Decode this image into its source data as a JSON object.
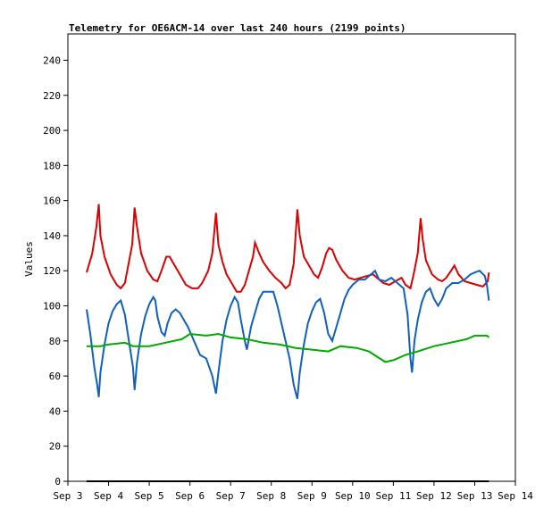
{
  "chart_data": {
    "type": "line",
    "title": "Telemetry for OE6ACM-14 over last 240 hours (2199 points)",
    "ylabel": "Values",
    "xlabel": "",
    "ylim": [
      0,
      255
    ],
    "xlim": [
      0,
      11
    ],
    "yticks": [
      0,
      20,
      40,
      60,
      80,
      100,
      120,
      140,
      160,
      180,
      200,
      220,
      240
    ],
    "xtick_labels": [
      "Sep 3",
      "Sep 4",
      "Sep 5",
      "Sep 6",
      "Sep 7",
      "Sep 8",
      "Sep 9",
      "Sep 10",
      "Sep 11",
      "Sep 12",
      "Sep 13",
      "Sep 14"
    ],
    "grid": false,
    "series": [
      {
        "color": "#dd0000",
        "points": [
          [
            0.46,
            119
          ],
          [
            0.6,
            130
          ],
          [
            0.7,
            145
          ],
          [
            0.76,
            158
          ],
          [
            0.8,
            140
          ],
          [
            0.9,
            128
          ],
          [
            1.05,
            118
          ],
          [
            1.2,
            112
          ],
          [
            1.3,
            110
          ],
          [
            1.4,
            113
          ],
          [
            1.5,
            125
          ],
          [
            1.58,
            135
          ],
          [
            1.64,
            156
          ],
          [
            1.7,
            145
          ],
          [
            1.8,
            130
          ],
          [
            1.95,
            120
          ],
          [
            2.1,
            115
          ],
          [
            2.2,
            114
          ],
          [
            2.3,
            120
          ],
          [
            2.42,
            128
          ],
          [
            2.5,
            128
          ],
          [
            2.6,
            124
          ],
          [
            2.75,
            118
          ],
          [
            2.9,
            112
          ],
          [
            3.05,
            110
          ],
          [
            3.2,
            110
          ],
          [
            3.3,
            113
          ],
          [
            3.45,
            120
          ],
          [
            3.55,
            130
          ],
          [
            3.64,
            153
          ],
          [
            3.7,
            135
          ],
          [
            3.8,
            125
          ],
          [
            3.9,
            118
          ],
          [
            4.05,
            112
          ],
          [
            4.15,
            108
          ],
          [
            4.25,
            108
          ],
          [
            4.35,
            112
          ],
          [
            4.45,
            120
          ],
          [
            4.55,
            128
          ],
          [
            4.6,
            136
          ],
          [
            4.7,
            130
          ],
          [
            4.8,
            125
          ],
          [
            4.95,
            120
          ],
          [
            5.1,
            116
          ],
          [
            5.25,
            113
          ],
          [
            5.35,
            110
          ],
          [
            5.45,
            112
          ],
          [
            5.55,
            124
          ],
          [
            5.64,
            155
          ],
          [
            5.7,
            140
          ],
          [
            5.8,
            128
          ],
          [
            5.95,
            122
          ],
          [
            6.05,
            118
          ],
          [
            6.15,
            116
          ],
          [
            6.25,
            122
          ],
          [
            6.35,
            130
          ],
          [
            6.42,
            133
          ],
          [
            6.5,
            132
          ],
          [
            6.6,
            126
          ],
          [
            6.75,
            120
          ],
          [
            6.9,
            116
          ],
          [
            7.05,
            115
          ],
          [
            7.2,
            116
          ],
          [
            7.35,
            117
          ],
          [
            7.5,
            118
          ],
          [
            7.6,
            116
          ],
          [
            7.75,
            113
          ],
          [
            7.9,
            112
          ],
          [
            8.05,
            114
          ],
          [
            8.2,
            116
          ],
          [
            8.3,
            112
          ],
          [
            8.42,
            110
          ],
          [
            8.5,
            118
          ],
          [
            8.6,
            130
          ],
          [
            8.67,
            150
          ],
          [
            8.72,
            138
          ],
          [
            8.8,
            126
          ],
          [
            8.95,
            118
          ],
          [
            9.1,
            115
          ],
          [
            9.2,
            114
          ],
          [
            9.3,
            116
          ],
          [
            9.42,
            120
          ],
          [
            9.5,
            123
          ],
          [
            9.6,
            118
          ],
          [
            9.75,
            114
          ],
          [
            9.9,
            113
          ],
          [
            10.05,
            112
          ],
          [
            10.2,
            111
          ],
          [
            10.32,
            114
          ],
          [
            10.35,
            119
          ]
        ]
      },
      {
        "color": "#1060c0",
        "points": [
          [
            0.46,
            98
          ],
          [
            0.55,
            84
          ],
          [
            0.65,
            65
          ],
          [
            0.72,
            55
          ],
          [
            0.76,
            48
          ],
          [
            0.8,
            62
          ],
          [
            0.9,
            78
          ],
          [
            1.0,
            90
          ],
          [
            1.1,
            97
          ],
          [
            1.2,
            101
          ],
          [
            1.3,
            103
          ],
          [
            1.4,
            95
          ],
          [
            1.5,
            80
          ],
          [
            1.6,
            65
          ],
          [
            1.64,
            52
          ],
          [
            1.7,
            68
          ],
          [
            1.8,
            84
          ],
          [
            1.9,
            94
          ],
          [
            2.0,
            101
          ],
          [
            2.1,
            105
          ],
          [
            2.15,
            103
          ],
          [
            2.2,
            94
          ],
          [
            2.3,
            85
          ],
          [
            2.38,
            83
          ],
          [
            2.45,
            90
          ],
          [
            2.55,
            96
          ],
          [
            2.65,
            98
          ],
          [
            2.75,
            96
          ],
          [
            2.85,
            92
          ],
          [
            2.95,
            88
          ],
          [
            3.1,
            80
          ],
          [
            3.25,
            72
          ],
          [
            3.4,
            70
          ],
          [
            3.55,
            60
          ],
          [
            3.64,
            50
          ],
          [
            3.7,
            62
          ],
          [
            3.8,
            80
          ],
          [
            3.9,
            92
          ],
          [
            4.0,
            100
          ],
          [
            4.1,
            105
          ],
          [
            4.18,
            102
          ],
          [
            4.25,
            92
          ],
          [
            4.35,
            80
          ],
          [
            4.4,
            75
          ],
          [
            4.5,
            88
          ],
          [
            4.6,
            96
          ],
          [
            4.7,
            104
          ],
          [
            4.8,
            108
          ],
          [
            4.9,
            108
          ],
          [
            5.05,
            108
          ],
          [
            5.15,
            100
          ],
          [
            5.3,
            85
          ],
          [
            5.45,
            70
          ],
          [
            5.55,
            55
          ],
          [
            5.64,
            47
          ],
          [
            5.7,
            62
          ],
          [
            5.8,
            78
          ],
          [
            5.9,
            90
          ],
          [
            6.0,
            97
          ],
          [
            6.1,
            102
          ],
          [
            6.2,
            104
          ],
          [
            6.3,
            96
          ],
          [
            6.4,
            84
          ],
          [
            6.5,
            80
          ],
          [
            6.6,
            88
          ],
          [
            6.7,
            96
          ],
          [
            6.8,
            104
          ],
          [
            6.9,
            109
          ],
          [
            7.0,
            112
          ],
          [
            7.15,
            115
          ],
          [
            7.3,
            115
          ],
          [
            7.45,
            118
          ],
          [
            7.55,
            120
          ],
          [
            7.65,
            115
          ],
          [
            7.8,
            114
          ],
          [
            7.95,
            116
          ],
          [
            8.1,
            113
          ],
          [
            8.25,
            110
          ],
          [
            8.35,
            95
          ],
          [
            8.42,
            70
          ],
          [
            8.46,
            62
          ],
          [
            8.52,
            80
          ],
          [
            8.6,
            92
          ],
          [
            8.7,
            102
          ],
          [
            8.8,
            108
          ],
          [
            8.9,
            110
          ],
          [
            9.0,
            104
          ],
          [
            9.1,
            100
          ],
          [
            9.2,
            104
          ],
          [
            9.3,
            110
          ],
          [
            9.45,
            113
          ],
          [
            9.6,
            113
          ],
          [
            9.75,
            115
          ],
          [
            9.9,
            118
          ],
          [
            10.0,
            119
          ],
          [
            10.12,
            120
          ],
          [
            10.25,
            117
          ],
          [
            10.3,
            112
          ],
          [
            10.35,
            103
          ]
        ]
      },
      {
        "color": "#00aa00",
        "points": [
          [
            0.46,
            77
          ],
          [
            0.8,
            77
          ],
          [
            1.0,
            78
          ],
          [
            1.4,
            79
          ],
          [
            1.6,
            77
          ],
          [
            2.0,
            77
          ],
          [
            2.4,
            79
          ],
          [
            2.8,
            81
          ],
          [
            3.0,
            84
          ],
          [
            3.4,
            83
          ],
          [
            3.7,
            84
          ],
          [
            4.0,
            82
          ],
          [
            4.4,
            81
          ],
          [
            4.8,
            79
          ],
          [
            5.2,
            78
          ],
          [
            5.6,
            76
          ],
          [
            6.0,
            75
          ],
          [
            6.4,
            74
          ],
          [
            6.7,
            77
          ],
          [
            7.1,
            76
          ],
          [
            7.4,
            74
          ],
          [
            7.6,
            71
          ],
          [
            7.8,
            68
          ],
          [
            8.0,
            69
          ],
          [
            8.3,
            72
          ],
          [
            8.6,
            74
          ],
          [
            9.0,
            77
          ],
          [
            9.4,
            79
          ],
          [
            9.8,
            81
          ],
          [
            10.0,
            83
          ],
          [
            10.3,
            83
          ],
          [
            10.35,
            82
          ]
        ]
      },
      {
        "color": "#000000",
        "points": [
          [
            0.46,
            0
          ],
          [
            10.35,
            0
          ]
        ]
      }
    ]
  }
}
